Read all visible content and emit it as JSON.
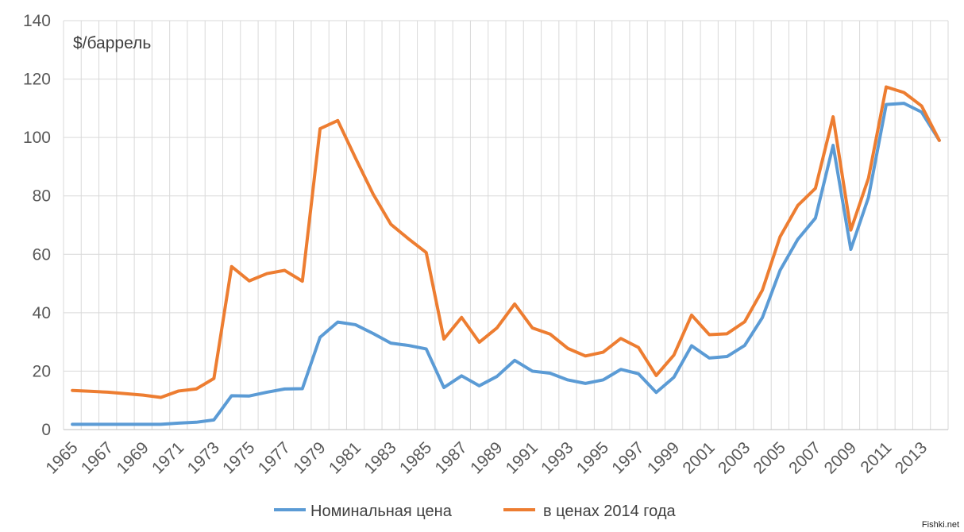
{
  "chart_data": {
    "type": "line",
    "ylabel": "$/баррель",
    "ylim": [
      0,
      140
    ],
    "yticks": [
      0,
      20,
      40,
      60,
      80,
      100,
      120,
      140
    ],
    "grid": "vertical and horizontal",
    "legend_position": "bottom",
    "x": [
      1965,
      1966,
      1967,
      1968,
      1969,
      1970,
      1971,
      1972,
      1973,
      1974,
      1975,
      1976,
      1977,
      1978,
      1979,
      1980,
      1981,
      1982,
      1983,
      1984,
      1985,
      1986,
      1987,
      1988,
      1989,
      1990,
      1991,
      1992,
      1993,
      1994,
      1995,
      1996,
      1997,
      1998,
      1999,
      2000,
      2001,
      2002,
      2003,
      2004,
      2005,
      2006,
      2007,
      2008,
      2009,
      2010,
      2011,
      2012,
      2013,
      2014
    ],
    "xtick_labels": [
      "1965",
      "1967",
      "1969",
      "1971",
      "1973",
      "1975",
      "1977",
      "1979",
      "1981",
      "1983",
      "1985",
      "1987",
      "1989",
      "1991",
      "1993",
      "1995",
      "1997",
      "1999",
      "2001",
      "2003",
      "2005",
      "2007",
      "2009",
      "2011",
      "2013"
    ],
    "series": [
      {
        "name": "Номинальная цена",
        "color": "#5B9BD5",
        "values": [
          1.8,
          1.8,
          1.8,
          1.8,
          1.8,
          1.8,
          2.2,
          2.5,
          3.3,
          11.6,
          11.5,
          12.8,
          13.9,
          14.0,
          31.6,
          36.8,
          35.9,
          32.9,
          29.6,
          28.8,
          27.6,
          14.4,
          18.4,
          15.0,
          18.2,
          23.7,
          20.0,
          19.3,
          17.0,
          15.8,
          17.0,
          20.6,
          19.1,
          12.7,
          17.9,
          28.7,
          24.5,
          25.0,
          28.8,
          38.3,
          54.5,
          65.1,
          72.4,
          97.3,
          61.7,
          79.5,
          111.3,
          111.7,
          108.7,
          99.0
        ]
      },
      {
        "name": "в ценах 2014 года",
        "color": "#ED7D31",
        "values": [
          13.4,
          13.1,
          12.8,
          12.3,
          11.8,
          11.0,
          13.2,
          13.9,
          17.5,
          55.8,
          50.9,
          53.4,
          54.5,
          50.8,
          103.0,
          105.8,
          93.0,
          80.6,
          70.3,
          65.3,
          60.6,
          31.0,
          38.4,
          29.9,
          34.8,
          43.0,
          34.8,
          32.7,
          27.8,
          25.2,
          26.5,
          31.2,
          28.1,
          18.5,
          25.5,
          39.2,
          32.5,
          32.8,
          36.9,
          47.7,
          66.0,
          76.7,
          82.6,
          107.1,
          68.3,
          86.1,
          117.3,
          115.4,
          110.8,
          99.0
        ]
      }
    ]
  },
  "watermark": "Fishki.net"
}
